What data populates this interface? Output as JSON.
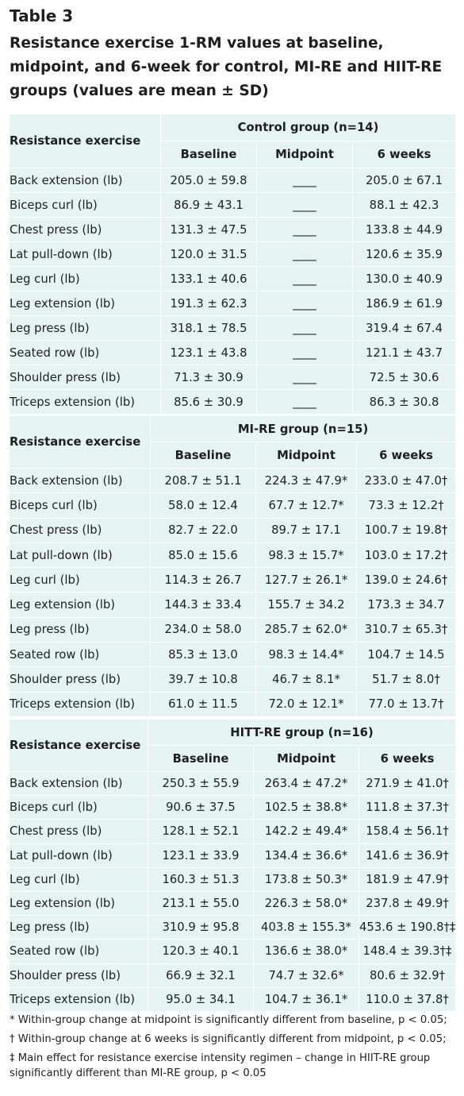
{
  "heading": {
    "label": "Table 3",
    "title": "Resistance exercise 1-RM values at baseline, midpoint, and 6-week for control, MI-RE and HIIT-RE groups (values are mean ± SD)"
  },
  "groups": [
    {
      "title": "Control group (n=14)",
      "first_col": "Resistance exercise",
      "columns": [
        "Baseline",
        "Midpoint",
        "6 weeks"
      ],
      "rows": [
        {
          "exercise": "Back extension (lb)",
          "baseline": "205.0 ± 59.8",
          "midpoint": "____",
          "six_weeks": "205.0 ± 67.1"
        },
        {
          "exercise": "Biceps curl (lb)",
          "baseline": "86.9 ± 43.1",
          "midpoint": "____",
          "six_weeks": "88.1 ± 42.3"
        },
        {
          "exercise": "Chest press (lb)",
          "baseline": "131.3 ± 47.5",
          "midpoint": "____",
          "six_weeks": "133.8 ± 44.9"
        },
        {
          "exercise": "Lat pull-down (lb)",
          "baseline": "120.0 ± 31.5",
          "midpoint": "____",
          "six_weeks": "120.6 ± 35.9"
        },
        {
          "exercise": "Leg curl (lb)",
          "baseline": "133.1 ± 40.6",
          "midpoint": "____",
          "six_weeks": "130.0 ± 40.9"
        },
        {
          "exercise": "Leg extension (lb)",
          "baseline": "191.3 ± 62.3",
          "midpoint": "____",
          "six_weeks": "186.9 ± 61.9"
        },
        {
          "exercise": "Leg press (lb)",
          "baseline": "318.1 ± 78.5",
          "midpoint": "____",
          "six_weeks": "319.4 ± 67.4"
        },
        {
          "exercise": "Seated row (lb)",
          "baseline": "123.1 ± 43.8",
          "midpoint": "____",
          "six_weeks": "121.1 ± 43.7"
        },
        {
          "exercise": "Shoulder press (lb)",
          "baseline": "71.3 ± 30.9",
          "midpoint": "____",
          "six_weeks": "72.5 ± 30.6"
        },
        {
          "exercise": "Triceps extension (lb)",
          "baseline": "85.6 ± 30.9",
          "midpoint": "____",
          "six_weeks": "86.3 ± 30.8"
        }
      ]
    },
    {
      "title": "MI-RE group (n=15)",
      "first_col": "Resistance exercise",
      "columns": [
        "Baseline",
        "Midpoint",
        "6 weeks"
      ],
      "rows": [
        {
          "exercise": "Back extension (lb)",
          "baseline": "208.7 ± 51.1",
          "midpoint": "224.3 ± 47.9*",
          "six_weeks": "233.0 ± 47.0†"
        },
        {
          "exercise": "Biceps curl (lb)",
          "baseline": "58.0 ± 12.4",
          "midpoint": "67.7 ± 12.7*",
          "six_weeks": "73.3 ± 12.2†"
        },
        {
          "exercise": "Chest press (lb)",
          "baseline": "82.7 ± 22.0",
          "midpoint": "89.7 ± 17.1",
          "six_weeks": "100.7 ± 19.8†"
        },
        {
          "exercise": "Lat pull-down (lb)",
          "baseline": "85.0 ± 15.6",
          "midpoint": "98.3 ± 15.7*",
          "six_weeks": "103.0 ± 17.2†"
        },
        {
          "exercise": "Leg curl (lb)",
          "baseline": "114.3 ± 26.7",
          "midpoint": "127.7 ± 26.1*",
          "six_weeks": "139.0 ± 24.6†"
        },
        {
          "exercise": "Leg extension (lb)",
          "baseline": "144.3 ± 33.4",
          "midpoint": "155.7 ± 34.2",
          "six_weeks": "173.3 ± 34.7"
        },
        {
          "exercise": "Leg press (lb)",
          "baseline": "234.0 ± 58.0",
          "midpoint": "285.7 ± 62.0*",
          "six_weeks": "310.7 ± 65.3†"
        },
        {
          "exercise": "Seated row (lb)",
          "baseline": "85.3 ± 13.0",
          "midpoint": "98.3 ± 14.4*",
          "six_weeks": "104.7 ± 14.5"
        },
        {
          "exercise": "Shoulder press (lb)",
          "baseline": "39.7 ± 10.8",
          "midpoint": "46.7 ± 8.1*",
          "six_weeks": "51.7 ± 8.0†"
        },
        {
          "exercise": "Triceps extension (lb)",
          "baseline": "61.0 ± 11.5",
          "midpoint": "72.0 ± 12.1*",
          "six_weeks": "77.0 ± 13.7†"
        }
      ]
    },
    {
      "title": "HITT-RE group (n=16)",
      "first_col": "Resistance exercise",
      "columns": [
        "Baseline",
        "Midpoint",
        "6 weeks"
      ],
      "rows": [
        {
          "exercise": "Back extension (lb)",
          "baseline": "250.3 ± 55.9",
          "midpoint": "263.4 ± 47.2*",
          "six_weeks": "271.9 ± 41.0†"
        },
        {
          "exercise": "Biceps curl (lb)",
          "baseline": "90.6 ± 37.5",
          "midpoint": "102.5 ± 38.8*",
          "six_weeks": "111.8 ± 37.3†"
        },
        {
          "exercise": "Chest press (lb)",
          "baseline": "128.1 ± 52.1",
          "midpoint": "142.2 ± 49.4*",
          "six_weeks": "158.4 ± 56.1†"
        },
        {
          "exercise": "Lat pull-down (lb)",
          "baseline": "123.1 ± 33.9",
          "midpoint": "134.4 ± 36.6*",
          "six_weeks": "141.6 ± 36.9†"
        },
        {
          "exercise": "Leg curl (lb)",
          "baseline": "160.3 ± 51.3",
          "midpoint": "173.8 ± 50.3*",
          "six_weeks": "181.9 ± 47.9†"
        },
        {
          "exercise": "Leg extension (lb)",
          "baseline": "213.1 ± 55.0",
          "midpoint": "226.3 ± 58.0*",
          "six_weeks": "237.8 ± 49.9†"
        },
        {
          "exercise": "Leg press (lb)",
          "baseline": "310.9 ± 95.8",
          "midpoint": "403.8 ± 155.3*",
          "six_weeks": "453.6 ± 190.8†‡"
        },
        {
          "exercise": "Seated row (lb)",
          "baseline": "120.3 ± 40.1",
          "midpoint": "136.6 ± 38.0*",
          "six_weeks": "148.4 ± 39.3†‡"
        },
        {
          "exercise": "Shoulder press (lb)",
          "baseline": "66.9 ± 32.1",
          "midpoint": "74.7 ± 32.6*",
          "six_weeks": "80.6 ± 32.9†"
        },
        {
          "exercise": "Triceps extension (lb)",
          "baseline": "95.0 ± 34.1",
          "midpoint": "104.7 ± 36.1*",
          "six_weeks": "110.0 ± 37.8†"
        }
      ]
    }
  ],
  "footnotes": [
    "* Within-group change at midpoint is significantly different from baseline, p < 0.05;",
    "† Within-group change at 6 weeks is significantly different from midpoint, p < 0.05;",
    "‡ Main effect for resistance exercise intensity regimen – change in HIIT-RE group significantly different than MI-RE group, p < 0.05"
  ],
  "colors": {
    "table_background": "#e5f3f3",
    "cell_border": "#ffffff",
    "text": "#1f1f1f"
  }
}
